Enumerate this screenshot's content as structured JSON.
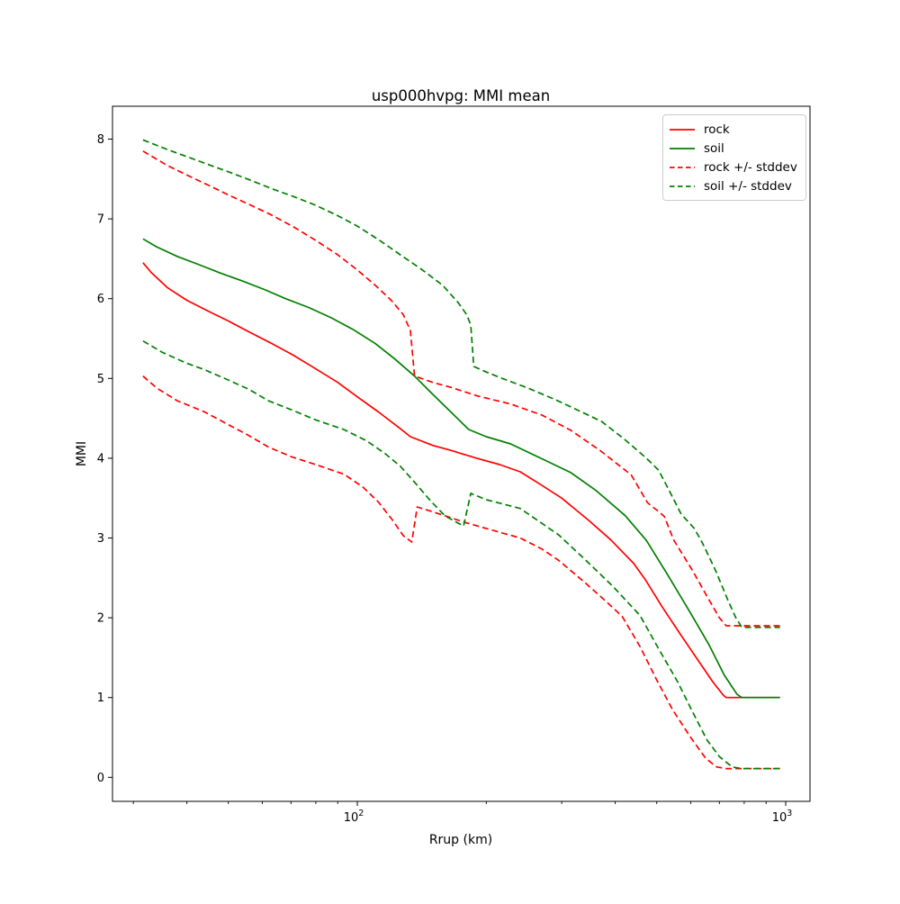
{
  "chart_data": {
    "type": "line",
    "title": "usp000hvpg: MMI mean",
    "xlabel": "Rrup (km)",
    "ylabel": "MMI",
    "x_scale": "log",
    "grid": false,
    "legend_position": "upper right",
    "xlim": [
      26.82,
      1139.5
    ],
    "ylim": [
      -0.301,
      8.412
    ],
    "y_ticks": [
      0,
      1,
      2,
      3,
      4,
      5,
      6,
      7,
      8
    ],
    "x_major_ticks": [
      {
        "value": 100,
        "mantissa": "10",
        "exponent": "2"
      },
      {
        "value": 1000,
        "mantissa": "10",
        "exponent": "3"
      }
    ],
    "x_minor_ticks": [
      30,
      40,
      50,
      60,
      70,
      80,
      90,
      200,
      300,
      400,
      500,
      600,
      700,
      800,
      900
    ],
    "colors": {
      "rock": "#ff0000",
      "soil": "#008000"
    },
    "legend": [
      {
        "label": "rock",
        "color": "#ff0000",
        "style": "solid"
      },
      {
        "label": "soil",
        "color": "#008000",
        "style": "solid"
      },
      {
        "label": "rock +/- stddev",
        "color": "#ff0000",
        "style": "dashed"
      },
      {
        "label": "soil +/- stddev",
        "color": "#008000",
        "style": "dashed"
      }
    ],
    "series": [
      {
        "name": "rock",
        "color": "#ff0000",
        "style": "solid",
        "points": [
          [
            31.6,
            6.45
          ],
          [
            33,
            6.33
          ],
          [
            36,
            6.14
          ],
          [
            40,
            5.98
          ],
          [
            45,
            5.84
          ],
          [
            50,
            5.72
          ],
          [
            56,
            5.58
          ],
          [
            63,
            5.44
          ],
          [
            71,
            5.29
          ],
          [
            80,
            5.12
          ],
          [
            90,
            4.95
          ],
          [
            100,
            4.77
          ],
          [
            112,
            4.58
          ],
          [
            126,
            4.37
          ],
          [
            133,
            4.27
          ],
          [
            150,
            4.16
          ],
          [
            165,
            4.1
          ],
          [
            190,
            4.0
          ],
          [
            215,
            3.92
          ],
          [
            240,
            3.83
          ],
          [
            268,
            3.67
          ],
          [
            300,
            3.5
          ],
          [
            347,
            3.22
          ],
          [
            390,
            2.98
          ],
          [
            442,
            2.68
          ],
          [
            470,
            2.48
          ],
          [
            513,
            2.15
          ],
          [
            565,
            1.81
          ],
          [
            624,
            1.47
          ],
          [
            675,
            1.2
          ],
          [
            715,
            1.03
          ],
          [
            726,
            1.0
          ],
          [
            970,
            1.0
          ]
        ]
      },
      {
        "name": "soil",
        "color": "#008000",
        "style": "solid",
        "points": [
          [
            31.6,
            6.75
          ],
          [
            34,
            6.65
          ],
          [
            38,
            6.53
          ],
          [
            43,
            6.42
          ],
          [
            48,
            6.32
          ],
          [
            54,
            6.22
          ],
          [
            61,
            6.11
          ],
          [
            68,
            6.0
          ],
          [
            77,
            5.89
          ],
          [
            87,
            5.76
          ],
          [
            98,
            5.61
          ],
          [
            110,
            5.44
          ],
          [
            122,
            5.25
          ],
          [
            136,
            5.03
          ],
          [
            150,
            4.8
          ],
          [
            166,
            4.57
          ],
          [
            182,
            4.36
          ],
          [
            200,
            4.27
          ],
          [
            228,
            4.18
          ],
          [
            268,
            4.0
          ],
          [
            315,
            3.82
          ],
          [
            360,
            3.6
          ],
          [
            422,
            3.28
          ],
          [
            473,
            2.97
          ],
          [
            530,
            2.54
          ],
          [
            598,
            2.07
          ],
          [
            661,
            1.67
          ],
          [
            719,
            1.28
          ],
          [
            770,
            1.04
          ],
          [
            790,
            1.0
          ],
          [
            970,
            1.0
          ]
        ]
      },
      {
        "name": "rock + stddev",
        "color": "#ff0000",
        "style": "dashed",
        "points": [
          [
            31.6,
            7.85
          ],
          [
            36,
            7.67
          ],
          [
            40,
            7.55
          ],
          [
            45,
            7.42
          ],
          [
            50,
            7.3
          ],
          [
            56,
            7.18
          ],
          [
            63,
            7.05
          ],
          [
            71,
            6.9
          ],
          [
            80,
            6.73
          ],
          [
            90,
            6.55
          ],
          [
            100,
            6.36
          ],
          [
            110,
            6.17
          ],
          [
            120,
            5.98
          ],
          [
            128,
            5.8
          ],
          [
            133,
            5.6
          ],
          [
            136,
            5.03
          ],
          [
            150,
            4.95
          ],
          [
            165,
            4.89
          ],
          [
            191,
            4.78
          ],
          [
            228,
            4.68
          ],
          [
            270,
            4.54
          ],
          [
            315,
            4.35
          ],
          [
            370,
            4.09
          ],
          [
            436,
            3.79
          ],
          [
            476,
            3.44
          ],
          [
            500,
            3.35
          ],
          [
            521,
            3.27
          ],
          [
            547,
            2.98
          ],
          [
            605,
            2.6
          ],
          [
            655,
            2.27
          ],
          [
            700,
            2.0
          ],
          [
            726,
            1.9
          ],
          [
            970,
            1.9
          ]
        ]
      },
      {
        "name": "rock - stddev",
        "color": "#ff0000",
        "style": "dashed",
        "points": [
          [
            31.6,
            5.03
          ],
          [
            34,
            4.88
          ],
          [
            38,
            4.72
          ],
          [
            44,
            4.58
          ],
          [
            50,
            4.42
          ],
          [
            56,
            4.28
          ],
          [
            62,
            4.14
          ],
          [
            70,
            4.02
          ],
          [
            80,
            3.92
          ],
          [
            93,
            3.8
          ],
          [
            103,
            3.64
          ],
          [
            112,
            3.45
          ],
          [
            121,
            3.22
          ],
          [
            128,
            3.03
          ],
          [
            134,
            2.95
          ],
          [
            138,
            3.39
          ],
          [
            160,
            3.28
          ],
          [
            177,
            3.2
          ],
          [
            200,
            3.12
          ],
          [
            240,
            3.0
          ],
          [
            270,
            2.86
          ],
          [
            295,
            2.72
          ],
          [
            340,
            2.44
          ],
          [
            378,
            2.22
          ],
          [
            415,
            2.02
          ],
          [
            457,
            1.64
          ],
          [
            500,
            1.22
          ],
          [
            544,
            0.85
          ],
          [
            600,
            0.5
          ],
          [
            650,
            0.24
          ],
          [
            690,
            0.13
          ],
          [
            726,
            0.11
          ],
          [
            970,
            0.11
          ]
        ]
      },
      {
        "name": "soil + stddev",
        "color": "#008000",
        "style": "dashed",
        "points": [
          [
            31.6,
            7.99
          ],
          [
            36,
            7.87
          ],
          [
            40,
            7.78
          ],
          [
            45,
            7.68
          ],
          [
            50,
            7.59
          ],
          [
            56,
            7.49
          ],
          [
            63,
            7.38
          ],
          [
            71,
            7.28
          ],
          [
            80,
            7.17
          ],
          [
            90,
            7.04
          ],
          [
            100,
            6.91
          ],
          [
            112,
            6.74
          ],
          [
            126,
            6.55
          ],
          [
            141,
            6.37
          ],
          [
            158,
            6.17
          ],
          [
            172,
            5.95
          ],
          [
            180,
            5.8
          ],
          [
            184,
            5.67
          ],
          [
            187,
            5.15
          ],
          [
            200,
            5.08
          ],
          [
            218,
            5.0
          ],
          [
            250,
            4.88
          ],
          [
            291,
            4.73
          ],
          [
            340,
            4.56
          ],
          [
            372,
            4.46
          ],
          [
            420,
            4.24
          ],
          [
            473,
            4.0
          ],
          [
            505,
            3.85
          ],
          [
            540,
            3.55
          ],
          [
            570,
            3.3
          ],
          [
            600,
            3.17
          ],
          [
            612,
            3.12
          ],
          [
            640,
            2.93
          ],
          [
            685,
            2.6
          ],
          [
            733,
            2.22
          ],
          [
            765,
            2.0
          ],
          [
            790,
            1.88
          ],
          [
            970,
            1.88
          ]
        ]
      },
      {
        "name": "soil - stddev",
        "color": "#008000",
        "style": "dashed",
        "points": [
          [
            31.6,
            5.47
          ],
          [
            35,
            5.33
          ],
          [
            40,
            5.19
          ],
          [
            44,
            5.11
          ],
          [
            50,
            4.98
          ],
          [
            56,
            4.86
          ],
          [
            62,
            4.72
          ],
          [
            70,
            4.61
          ],
          [
            80,
            4.48
          ],
          [
            93,
            4.36
          ],
          [
            105,
            4.22
          ],
          [
            116,
            4.06
          ],
          [
            126,
            3.9
          ],
          [
            136,
            3.7
          ],
          [
            148,
            3.47
          ],
          [
            160,
            3.28
          ],
          [
            170,
            3.2
          ],
          [
            177,
            3.15
          ],
          [
            184,
            3.56
          ],
          [
            200,
            3.48
          ],
          [
            240,
            3.37
          ],
          [
            295,
            3.04
          ],
          [
            340,
            2.73
          ],
          [
            394,
            2.4
          ],
          [
            457,
            2.03
          ],
          [
            504,
            1.62
          ],
          [
            559,
            1.2
          ],
          [
            605,
            0.83
          ],
          [
            655,
            0.47
          ],
          [
            700,
            0.26
          ],
          [
            750,
            0.13
          ],
          [
            790,
            0.11
          ],
          [
            970,
            0.11
          ]
        ]
      }
    ]
  }
}
